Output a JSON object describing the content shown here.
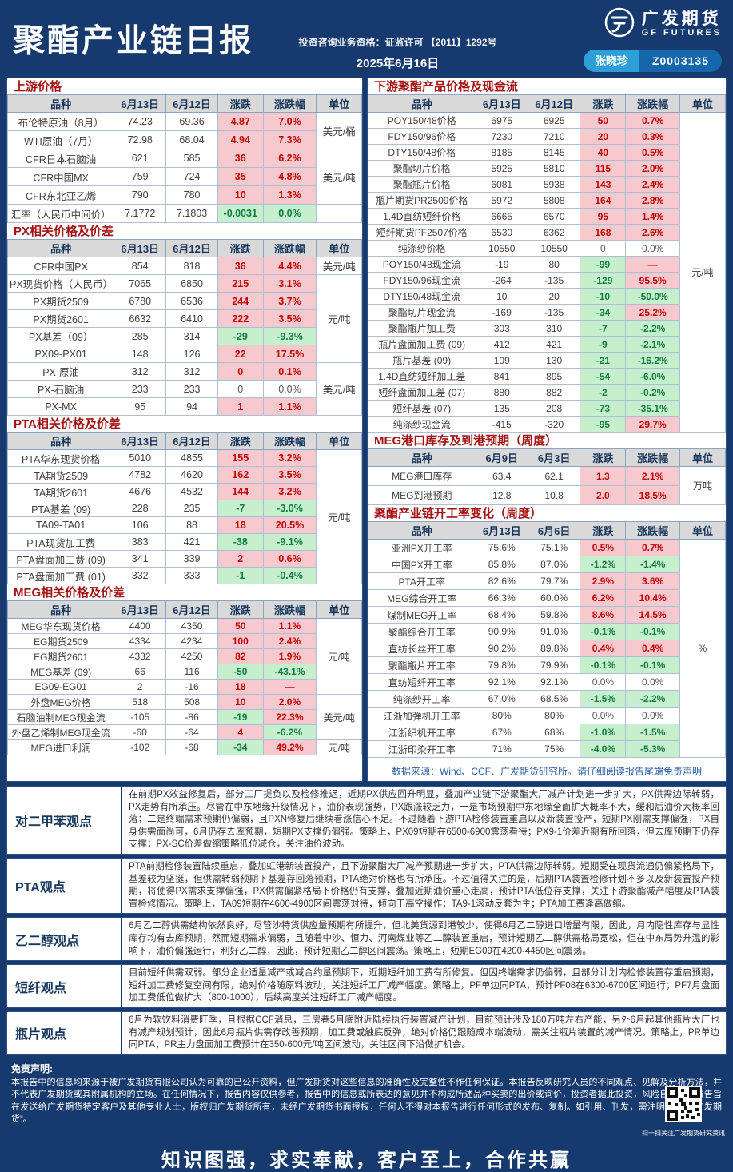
{
  "header": {
    "title": "聚酯产业链日报",
    "license": "投资咨询业务资格：证监许可 【2011】1292号",
    "date": "2025年6月16日",
    "brand_cn": "广发期货",
    "brand_en": "GF FUTURES",
    "analyst": "张晓珍",
    "analyst_id": "Z0003135"
  },
  "tables": {
    "left_column": [
      {
        "id": "upstream",
        "title": "上游价格",
        "headers": [
          "品种",
          "6月13日",
          "6月12日",
          "涨跌",
          "涨跌幅",
          "单位"
        ],
        "rows": [
          [
            "布伦特原油（8月）",
            "74.23",
            "69.36",
            "4.87",
            "up",
            "7.0%",
            "up",
            "美元/桶",
            2
          ],
          [
            "WTI原油（7月）",
            "72.98",
            "68.04",
            "4.94",
            "up",
            "7.3%",
            "up"
          ],
          [
            "CFR日本石脑油",
            "621",
            "585",
            "36",
            "up",
            "6.2%",
            "up",
            "美元/吨",
            3
          ],
          [
            "CFR中国MX",
            "759",
            "724",
            "35",
            "up",
            "4.8%",
            "up"
          ],
          [
            "CFR东北亚乙烯",
            "790",
            "780",
            "10",
            "up",
            "1.3%",
            "up"
          ],
          [
            "汇率（人民币中间价）",
            "7.1772",
            "7.1803",
            "-0.0031",
            "down",
            "0.0%",
            "down",
            "",
            1
          ]
        ]
      },
      {
        "id": "px",
        "title": "PX相关价格及价差",
        "headers": [
          "品种",
          "6月13日",
          "6月12日",
          "涨跌",
          "涨跌幅",
          "单位"
        ],
        "rows": [
          [
            "CFR中国PX",
            "854",
            "818",
            "36",
            "up",
            "4.4%",
            "up",
            "美元/吨",
            1
          ],
          [
            "PX现货价格（人民币）",
            "7065",
            "6850",
            "215",
            "up",
            "3.1%",
            "up",
            "元/吨",
            5
          ],
          [
            "PX期货2509",
            "6780",
            "6536",
            "244",
            "up",
            "3.7%",
            "up"
          ],
          [
            "PX期货2601",
            "6632",
            "6410",
            "222",
            "up",
            "3.5%",
            "up"
          ],
          [
            "PX基差（09）",
            "285",
            "314",
            "-29",
            "down",
            "-9.3%",
            "down"
          ],
          [
            "PX09-PX01",
            "148",
            "126",
            "22",
            "up",
            "17.5%",
            "up"
          ],
          [
            "PX-原油",
            "312",
            "312",
            "0",
            "up",
            "0.1%",
            "up",
            "美元/吨",
            3
          ],
          [
            "PX-石脑油",
            "233",
            "233",
            "0",
            "flat",
            "0.0%",
            "flat"
          ],
          [
            "PX-MX",
            "95",
            "94",
            "1",
            "up",
            "1.1%",
            "up"
          ]
        ]
      },
      {
        "id": "pta",
        "title": "PTA相关价格及价差",
        "headers": [
          "品种",
          "6月13日",
          "6月12日",
          "涨跌",
          "涨跌幅",
          "单位"
        ],
        "rows": [
          [
            "PTA华东现货价格",
            "5010",
            "4855",
            "155",
            "up",
            "3.2%",
            "up",
            "元/吨",
            8
          ],
          [
            "TA期货2509",
            "4782",
            "4620",
            "162",
            "up",
            "3.5%",
            "up"
          ],
          [
            "TA期货2601",
            "4676",
            "4532",
            "144",
            "up",
            "3.2%",
            "up"
          ],
          [
            "PTA基差 (09)",
            "228",
            "235",
            "-7",
            "down",
            "-3.0%",
            "down"
          ],
          [
            "TA09-TA01",
            "106",
            "88",
            "18",
            "up",
            "20.5%",
            "up"
          ],
          [
            "PTA现货加工费",
            "383",
            "421",
            "-38",
            "down",
            "-9.1%",
            "down"
          ],
          [
            "PTA盘面加工费 (09)",
            "341",
            "339",
            "2",
            "up",
            "0.6%",
            "up"
          ],
          [
            "PTA盘面加工费 (01)",
            "332",
            "333",
            "-1",
            "down",
            "-0.4%",
            "down"
          ]
        ]
      },
      {
        "id": "meg",
        "title": "MEG相关价格及价差",
        "headers": [
          "品种",
          "6月13日",
          "6月12日",
          "涨跌",
          "涨跌幅",
          "单位"
        ],
        "rows": [
          [
            "MEG华东现货价格",
            "4400",
            "4350",
            "50",
            "up",
            "1.1%",
            "up",
            "元/吨",
            5
          ],
          [
            "EG期货2509",
            "4334",
            "4234",
            "100",
            "up",
            "2.4%",
            "up"
          ],
          [
            "EG期货2601",
            "4332",
            "4250",
            "82",
            "up",
            "1.9%",
            "up"
          ],
          [
            "MEG基差 (09)",
            "66",
            "116",
            "-50",
            "down",
            "-43.1%",
            "down"
          ],
          [
            "EG09-EG01",
            "2",
            "-16",
            "18",
            "up",
            "—",
            "up"
          ],
          [
            "外盘MEG价格",
            "518",
            "508",
            "10",
            "up",
            "2.0%",
            "up",
            "美元/吨",
            3
          ],
          [
            "石脑油制MEG现金流",
            "-105",
            "-86",
            "-19",
            "down",
            "22.3%",
            "up"
          ],
          [
            "外盘乙烯制MEG现金流",
            "-60",
            "-64",
            "4",
            "up",
            "-6.2%",
            "down"
          ],
          [
            "MEG进口利润",
            "-102",
            "-68",
            "-34",
            "down",
            "49.2%",
            "up",
            "元/吨",
            1
          ]
        ]
      }
    ],
    "right_column": [
      {
        "id": "downstream",
        "title": "下游聚酯产品价格及现金流",
        "headers": [
          "品种",
          "6月13日",
          "6月12日",
          "涨跌",
          "涨跌幅",
          "单位"
        ],
        "rows": [
          [
            "POY150/48价格",
            "6975",
            "6925",
            "50",
            "up",
            "0.7%",
            "up",
            "元/吨",
            20
          ],
          [
            "FDY150/96价格",
            "7230",
            "7210",
            "20",
            "up",
            "0.3%",
            "up"
          ],
          [
            "DTY150/48价格",
            "8185",
            "8145",
            "40",
            "up",
            "0.5%",
            "up"
          ],
          [
            "聚酯切片价格",
            "5925",
            "5810",
            "115",
            "up",
            "2.0%",
            "up"
          ],
          [
            "聚酯瓶片价格",
            "6081",
            "5938",
            "143",
            "up",
            "2.4%",
            "up"
          ],
          [
            "瓶片期货PR2509价格",
            "5972",
            "5808",
            "164",
            "up",
            "2.8%",
            "up"
          ],
          [
            "1.4D直纺短纤价格",
            "6665",
            "6570",
            "95",
            "up",
            "1.4%",
            "up"
          ],
          [
            "短纤期货PF2507价格",
            "6530",
            "6362",
            "168",
            "up",
            "2.6%",
            "up"
          ],
          [
            "纯涤纱价格",
            "10550",
            "10550",
            "0",
            "flat",
            "0.0%",
            "flat"
          ],
          [
            "POY150/48现金流",
            "-19",
            "80",
            "-99",
            "down",
            "—",
            "up"
          ],
          [
            "FDY150/96现金流",
            "-264",
            "-135",
            "-129",
            "down",
            "95.5%",
            "up"
          ],
          [
            "DTY150/48现金流",
            "10",
            "20",
            "-10",
            "down",
            "-50.0%",
            "down"
          ],
          [
            "聚酯切片现金流",
            "-169",
            "-135",
            "-34",
            "down",
            "25.2%",
            "up"
          ],
          [
            "聚酯瓶片加工费",
            "303",
            "310",
            "-7",
            "down",
            "-2.2%",
            "down"
          ],
          [
            "瓶片盘面加工费 (09)",
            "412",
            "421",
            "-9",
            "down",
            "-2.1%",
            "down"
          ],
          [
            "瓶片基差 (09)",
            "109",
            "130",
            "-21",
            "down",
            "-16.2%",
            "down"
          ],
          [
            "1.4D直纺短纤加工差",
            "841",
            "895",
            "-54",
            "down",
            "-6.0%",
            "down"
          ],
          [
            "短纤盘面加工差 (07)",
            "880",
            "882",
            "-2",
            "down",
            "-0.2%",
            "down"
          ],
          [
            "短纤基差 (07)",
            "135",
            "208",
            "-73",
            "down",
            "-35.1%",
            "down"
          ],
          [
            "纯涤纱现金流",
            "-415",
            "-320",
            "-95",
            "down",
            "29.7%",
            "up"
          ]
        ]
      },
      {
        "id": "megport",
        "title": "MEG港口库存及到港预期（周度）",
        "headers": [
          "品种",
          "6月9日",
          "6月3日",
          "涨跌",
          "涨跌幅",
          "单位"
        ],
        "rows": [
          [
            "MEG港口库存",
            "63.4",
            "62.1",
            "1.3",
            "up",
            "2.1%",
            "up",
            "万吨",
            2
          ],
          [
            "MEG到港预期",
            "12.8",
            "10.8",
            "2.0",
            "up",
            "18.5%",
            "up"
          ]
        ]
      },
      {
        "id": "operating",
        "title": "聚酯产业链开工率变化（周度）",
        "headers": [
          "品种",
          "6月13日",
          "6月6日",
          "涨跌",
          "涨跌幅",
          "单位"
        ],
        "rows": [
          [
            "亚洲PX开工率",
            "75.6%",
            "75.1%",
            "0.5%",
            "up",
            "0.7%",
            "up",
            "%",
            13
          ],
          [
            "中国PX开工率",
            "85.8%",
            "87.0%",
            "-1.2%",
            "down",
            "-1.4%",
            "down"
          ],
          [
            "PTA开工率",
            "82.6%",
            "79.7%",
            "2.9%",
            "up",
            "3.6%",
            "up"
          ],
          [
            "MEG综合开工率",
            "66.3%",
            "60.0%",
            "6.2%",
            "up",
            "10.4%",
            "up"
          ],
          [
            "煤制MEG开工率",
            "68.4%",
            "59.8%",
            "8.6%",
            "up",
            "14.5%",
            "up"
          ],
          [
            "聚酯综合开工率",
            "90.9%",
            "91.0%",
            "-0.1%",
            "down",
            "-0.1%",
            "down"
          ],
          [
            "直纺长丝开工率",
            "90.2%",
            "89.8%",
            "0.4%",
            "up",
            "0.4%",
            "up"
          ],
          [
            "聚酯瓶片开工率",
            "79.8%",
            "79.9%",
            "-0.1%",
            "down",
            "-0.1%",
            "down"
          ],
          [
            "直纺短纤开工率",
            "92.1%",
            "92.1%",
            "0.0%",
            "flat",
            "0.0%",
            "flat"
          ],
          [
            "纯涤纱开工率",
            "67.0%",
            "68.5%",
            "-1.5%",
            "down",
            "-2.2%",
            "down"
          ],
          [
            "江浙加弹机开工率",
            "80%",
            "80%",
            "0.0%",
            "flat",
            "0.0%",
            "flat"
          ],
          [
            "江浙织机开工率",
            "67%",
            "68%",
            "-1.0%",
            "down",
            "-1.5%",
            "down"
          ],
          [
            "江浙印染开工率",
            "71%",
            "75%",
            "-4.0%",
            "down",
            "-5.3%",
            "down"
          ]
        ]
      }
    ]
  },
  "source_note": "数据来源：Wind、CCF、广发期货研究所。请仔细阅读报告尾端免责声明",
  "opinions": [
    {
      "label": "对二甲苯观点",
      "text": "在前期PX效益修复后，部分工厂提负以及检修推迟，近期PX供应回升明显，叠加产业链下游聚酯大厂减产计划进一步扩大，PX供需边际转弱，PX走势有所承压。尽管在中东地缘升级情况下，油价表现强势，PX跟涨较乏力，一是市场预期中东地缘全面扩大概率不大，缓和后油价大概率回落；二是终端需求预期仍偏弱，且PXN修复后继续看涨信心不足。不过随着下游PTA检修装置重启以及新装置投产，短期PX刚需支撑偏强，PX自身供需面尚可，6月仍存去库预期，短期PX支撑仍偏强。策略上，PX09短期在6500-6900震荡看待；PX9-1价差近期有所回落，但去库预期下仍存支撑；PX-SC价差做缩策略低位减仓，关注油价波动。"
    },
    {
      "label": "PTA观点",
      "text": "PTA前期检修装置陆续重启，叠加虹港新装置投产，且下游聚酯大厂减产预期进一步扩大，PTA供需边际转弱。短期受在现货流通仍偏紧格局下，基差较为坚挺，但供需转弱预期下基差存回落预期，PTA绝对价格也有所承压。不过值得关注的是，后期PTA装置检修计划不多以及新装置投产预期，将使得PX需求支撑偏强，PX供需偏紧格局下价格仍有支撑，叠加近期油价重心走高，预计PTA低位存支撑，关注下游聚酯减产幅度及PTA装置检修情况。策略上，TA09短期在4600-4900区间震荡对待，倾向于高空操作；TA9-1滚动反套为主；PTA加工费逢高做缩。"
    },
    {
      "label": "乙二醇观点",
      "text": "6月乙二醇供需结构依然良好，尽管沙特货供应量预期有所提升，但北美货源到港较少，使得6月乙二醇进口增量有限，因此，月内隐性库存与显性库存均有去库预期，然而短期需求偏弱，且随着中沙、恒力、河南煤业等乙二醇装置重启，预计短期乙二醇供需格局宽松，但在中东局势升温的影响下，油价偏强运行，利好乙二醇，因此，预计短期乙二醇区间震荡。策略上，短期EG09在4200-4450区间震荡。"
    },
    {
      "label": "短纤观点",
      "text": "目前短纤供需双弱。部分企业适量减产或减合约量预期下，近期短纤加工费有所修复。但因终端需求仍偏弱，且部分计划内检修装置存重启预期，短纤加工费修复空间有限，绝对价格随原料波动，关注短纤工厂减产幅度。策略上，PF单边同PTA，预计PF08在6300-6700区间运行；PF7月盘面加工费低位做扩大（800-1000），后续高度关注短纤工厂减产幅度。"
    },
    {
      "label": "瓶片观点",
      "text": "6月为软饮料消费旺季，且根据CCF消息，三房巷5月底附近陆续执行装置减产计划，目前预计涉及180万吨左右产能，另外6月起其他瓶片大厂也有减产规划预计，因此6月瓶片供需存改善预期，加工费或触底反弹，绝对价格仍跟随成本端波动，需关注瓶片装置的减产情况。策略上，PR单边同PTA；PR主力盘面加工费预计在350-600元/吨区间波动，关注区间下沿做扩机会。"
    }
  ],
  "disclaimer": {
    "title": "免责声明:",
    "text": "本报告中的信息均来源于被广发期货有限公司认为可靠的已公开资料，但广发期货对这些信息的准确性及完整性不作任何保证。本报告反映研究人员的不同观点、见解及分析方法，并不代表广发期货或其附属机构的立场。在任何情况下，报告内容仅供参考，报告中的信息或所表达的意见并不构成所述品种买卖的出价或询价，投资者据此投资，风险自担。本报告旨在发送给广发期货特定客户及其他专业人士，版权归广发期货所有，未经广发期货书面授权，任何人不得对本报告进行任何形式的发布、复制。如引用、刊发，需注明出处为“广发期货”。"
  },
  "footer": {
    "slogan": "知识图强，求实奉献，客户至上，合作共赢",
    "qr_caption": "扫一扫关注广发期货研究资讯"
  }
}
